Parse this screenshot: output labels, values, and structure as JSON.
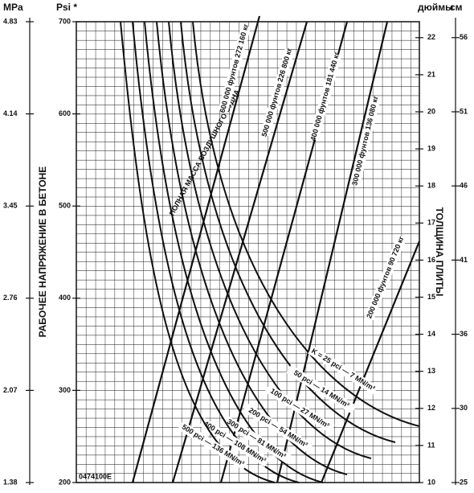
{
  "chart_data": {
    "type": "nomograph",
    "y_title": "РАБОЧЕЕ НАПРЯЖЕНИЕ В БЕТОНЕ",
    "y2_title": "ТОЛЩИНА ПЛИТЫ",
    "weight_title": "ПОЛНАЯ МАССА ВОЗДУШНОГО СУДНА",
    "code": "0474100E",
    "axes": [
      {
        "title": "MPa",
        "side": "left-outer",
        "lim": [
          1.38,
          4.83
        ],
        "ticks": [
          1.38,
          2.07,
          2.76,
          3.45,
          4.14,
          4.83
        ]
      },
      {
        "title": "Psi *",
        "side": "left",
        "lim": [
          200,
          700
        ],
        "ticks": [
          200,
          300,
          400,
          500,
          600,
          700
        ]
      },
      {
        "title": "дюймы",
        "side": "right",
        "lim": [
          10,
          22.43
        ],
        "ticks": [
          10,
          11,
          12,
          13,
          14,
          15,
          16,
          17,
          18,
          19,
          20,
          21,
          22
        ]
      },
      {
        "title": "см",
        "side": "right-outer",
        "lim": [
          25.4,
          56.97
        ],
        "ticks": [
          {
            "value": 25.4,
            "label": "25"
          },
          {
            "value": 30.48,
            "label": "30"
          },
          {
            "value": 35.56,
            "label": "36"
          },
          {
            "value": 40.64,
            "label": "41"
          },
          {
            "value": 45.72,
            "label": "46"
          },
          {
            "value": 50.8,
            "label": "51"
          },
          {
            "value": 55.88,
            "label": "56"
          }
        ]
      }
    ],
    "weight_lines": [
      "600 000 фунтов 272 160 кг",
      "500 000 фунтов 226 800 кг",
      "400 000 фунтов 181 440 кг",
      "300 000 фунтов 136 080 кг",
      "200 000 фунтов 90 720 кг"
    ],
    "k_curves": [
      "K = 25 pci — 7 MN/m³",
      "50 pci — 14 MN/m³",
      "100 pci — 27 MN/m³",
      "200 pci — 54 MN/m³",
      "300 pci — 81 MN/m³",
      "400 pci — 108 MN/m³",
      "500 pci — 136 MN/m³"
    ]
  }
}
